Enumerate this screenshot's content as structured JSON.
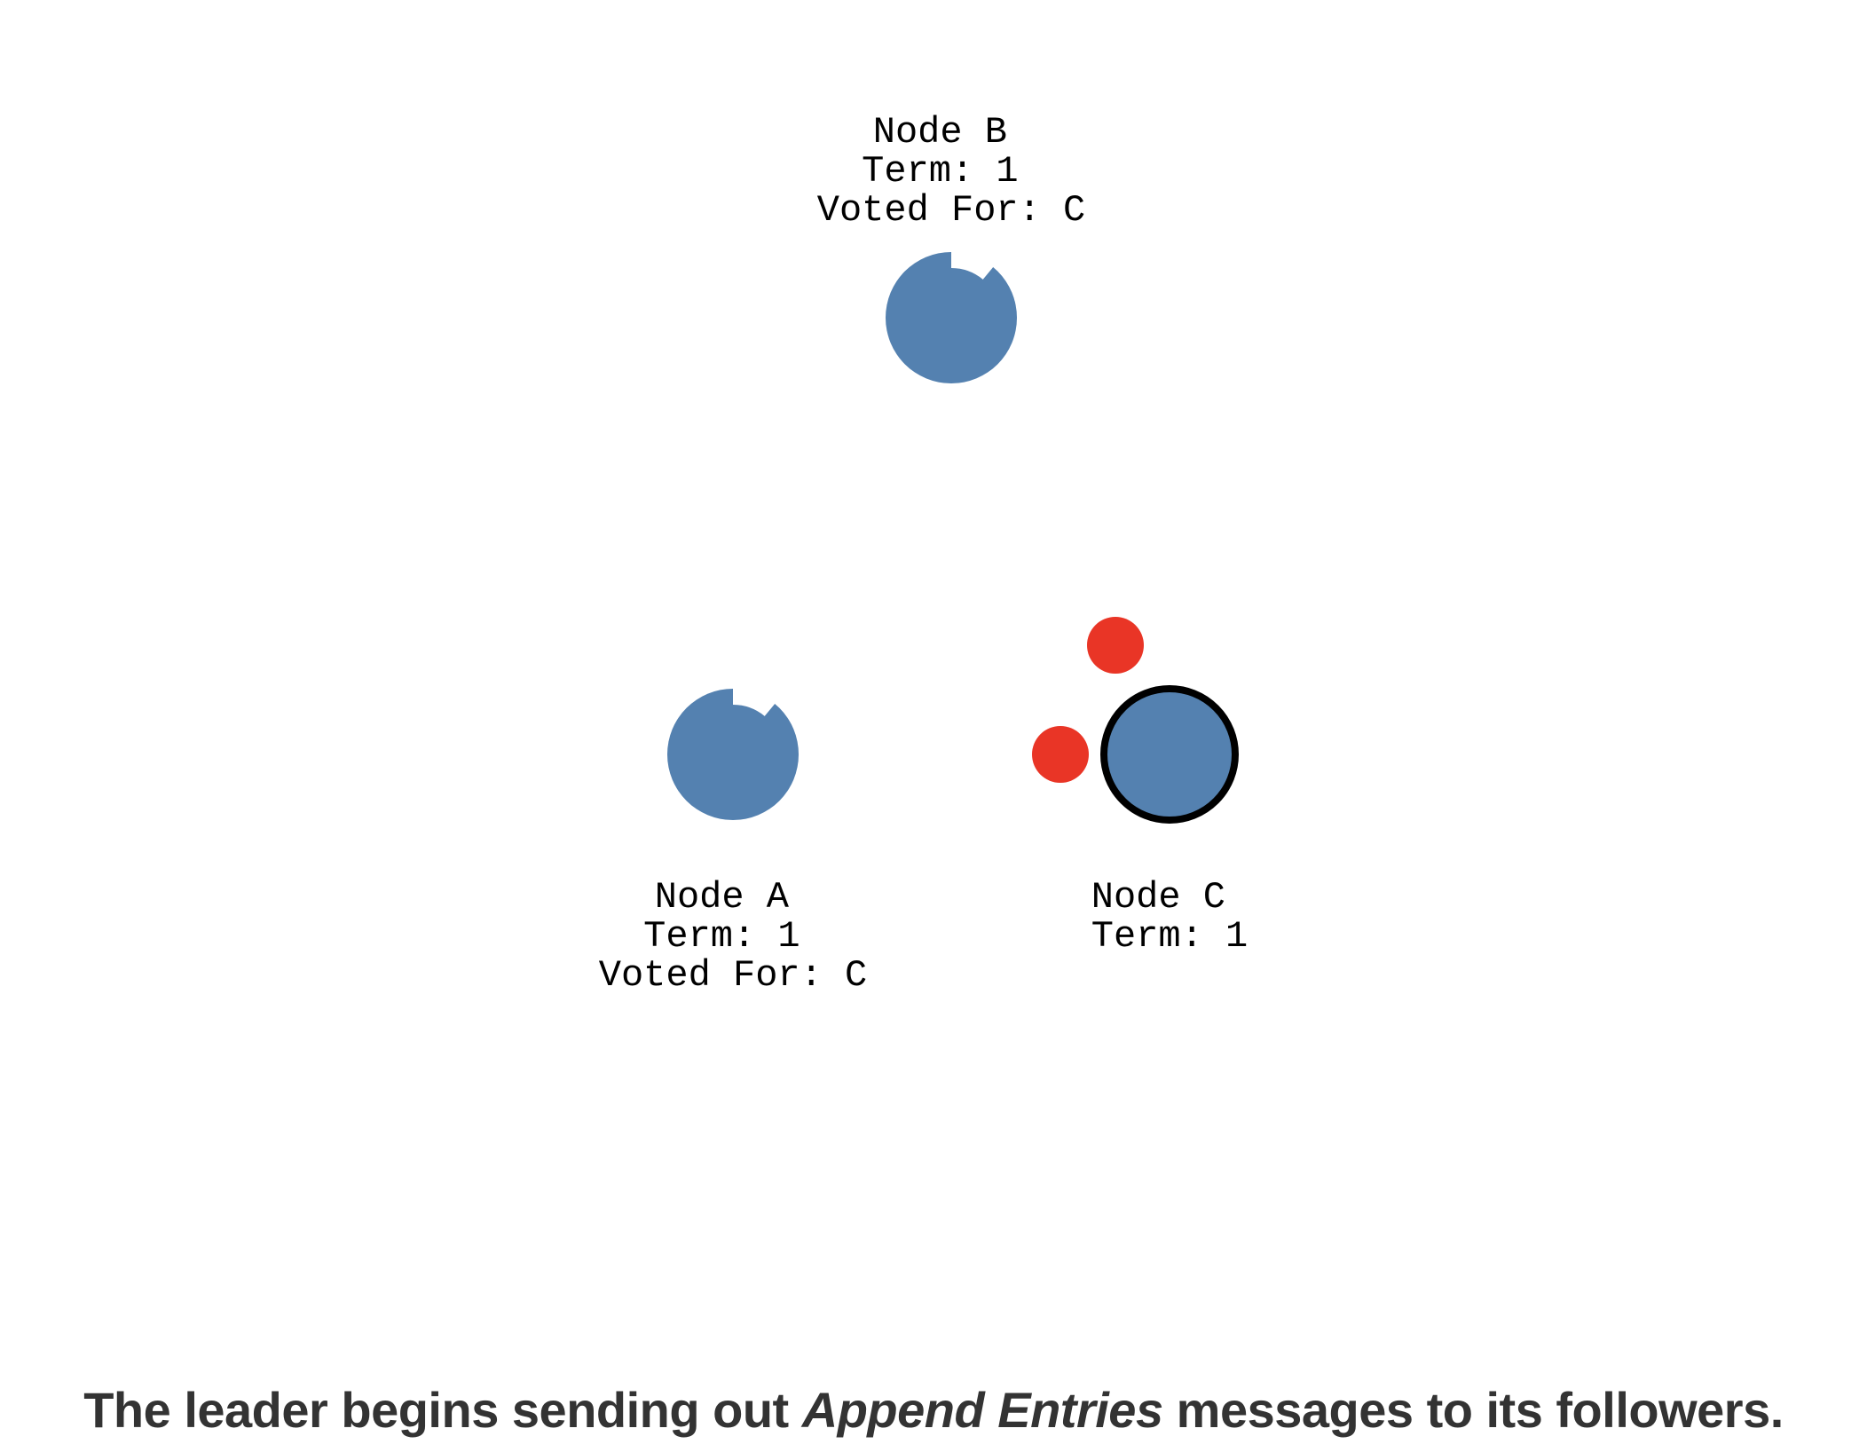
{
  "colors": {
    "node_fill": "#5481b0",
    "message_fill": "#e93526",
    "leader_stroke": "#000000",
    "caption_text": "#333333"
  },
  "nodes": [
    {
      "id": "b",
      "lines": [
        "Node B",
        "Term: 1",
        "Voted For: C"
      ],
      "role": "follower",
      "timeout_remaining": 0.97
    },
    {
      "id": "a",
      "lines": [
        "Node A",
        "Term: 1",
        "Voted For: C"
      ],
      "role": "follower",
      "timeout_remaining": 0.97
    },
    {
      "id": "c",
      "lines": [
        "Node C",
        "Term: 1"
      ],
      "role": "leader"
    }
  ],
  "messages": [
    {
      "type": "append-entries",
      "from": "c",
      "to": "b"
    },
    {
      "type": "append-entries",
      "from": "c",
      "to": "a"
    }
  ],
  "caption": {
    "before": "The leader begins sending out ",
    "emphasis": "Append Entries",
    "after": " messages to its followers."
  }
}
